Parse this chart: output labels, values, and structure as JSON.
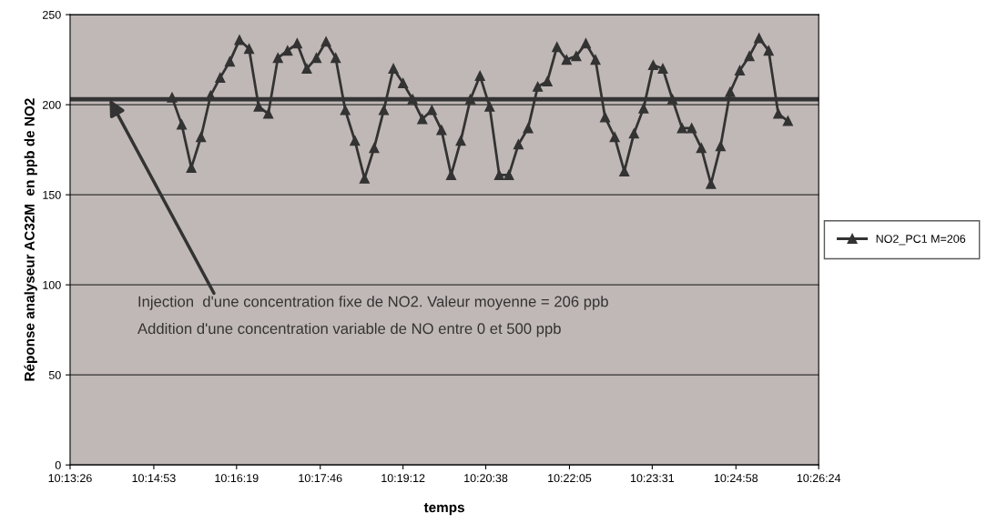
{
  "chart_data": {
    "type": "line",
    "xlabel": "temps",
    "ylabel": "Réponse analyseur AC32M  en ppb de NO2",
    "x": [
      10.25333,
      10.25611,
      10.25889,
      10.26167,
      10.26444,
      10.26722,
      10.27,
      10.27278,
      10.27556,
      10.27833,
      10.28111,
      10.28389,
      10.28667,
      10.28944,
      10.29222,
      10.295,
      10.29778,
      10.30056,
      10.30333,
      10.30611,
      10.30889,
      10.31167,
      10.31444,
      10.31722,
      10.32,
      10.32278,
      10.32556,
      10.32833,
      10.33111,
      10.33389,
      10.33667,
      10.33944,
      10.34222,
      10.345,
      10.34778,
      10.35056,
      10.35333,
      10.35611,
      10.35889,
      10.36167,
      10.36444,
      10.36722,
      10.37,
      10.37278,
      10.37556,
      10.37833,
      10.38111,
      10.38389,
      10.38667,
      10.38944,
      10.39222,
      10.395,
      10.39778,
      10.40056,
      10.40333,
      10.40611,
      10.40889,
      10.41167,
      10.41444,
      10.41722,
      10.42,
      10.42278,
      10.42556,
      10.42833,
      10.43111
    ],
    "series": [
      {
        "name": "NO2_PC1 M=206",
        "color": "#333333",
        "values": [
          204,
          189,
          165,
          182,
          205,
          215,
          224,
          236,
          231,
          199,
          195,
          226,
          230,
          234,
          220,
          226,
          235,
          226,
          197,
          180,
          159,
          176,
          197,
          220,
          212,
          203,
          192,
          197,
          186,
          161,
          180,
          203,
          216,
          199,
          161,
          161,
          178,
          187,
          210,
          213,
          232,
          225,
          227,
          234,
          225,
          193,
          182,
          163,
          184,
          198,
          222,
          220,
          203,
          187,
          187,
          176,
          156,
          177,
          207,
          219,
          227,
          237,
          230,
          195,
          191
        ]
      }
    ],
    "xlim": [
      10.223889,
      10.44
    ],
    "ylim": [
      0,
      250
    ],
    "xticks": [
      {
        "value": 10.223889,
        "label": "10:13:26"
      },
      {
        "value": 10.248056,
        "label": "10:14:53"
      },
      {
        "value": 10.271944,
        "label": "10:16:19"
      },
      {
        "value": 10.296111,
        "label": "10:17:46"
      },
      {
        "value": 10.32,
        "label": "10:19:12"
      },
      {
        "value": 10.343889,
        "label": "10:20:38"
      },
      {
        "value": 10.368056,
        "label": "10:22:05"
      },
      {
        "value": 10.391944,
        "label": "10:23:31"
      },
      {
        "value": 10.416111,
        "label": "10:24:58"
      },
      {
        "value": 10.44,
        "label": "10:26:24"
      }
    ],
    "yticks": [
      0,
      50,
      100,
      150,
      200,
      250
    ],
    "grid": "y",
    "legend": "right",
    "marker": "triangle",
    "line_style": "solid",
    "ref_lines": [
      {
        "axis": "y",
        "value": 203,
        "color": "#333333"
      }
    ],
    "annotations": [
      {
        "text": "Injection  d'une concentration fixe de NO2. Valeur moyenne = 206 ppb",
        "x": 10.23528,
        "y": 203
      },
      "Addition d'une concentration variable de NO entre 0 et 500 ppb"
    ]
  }
}
